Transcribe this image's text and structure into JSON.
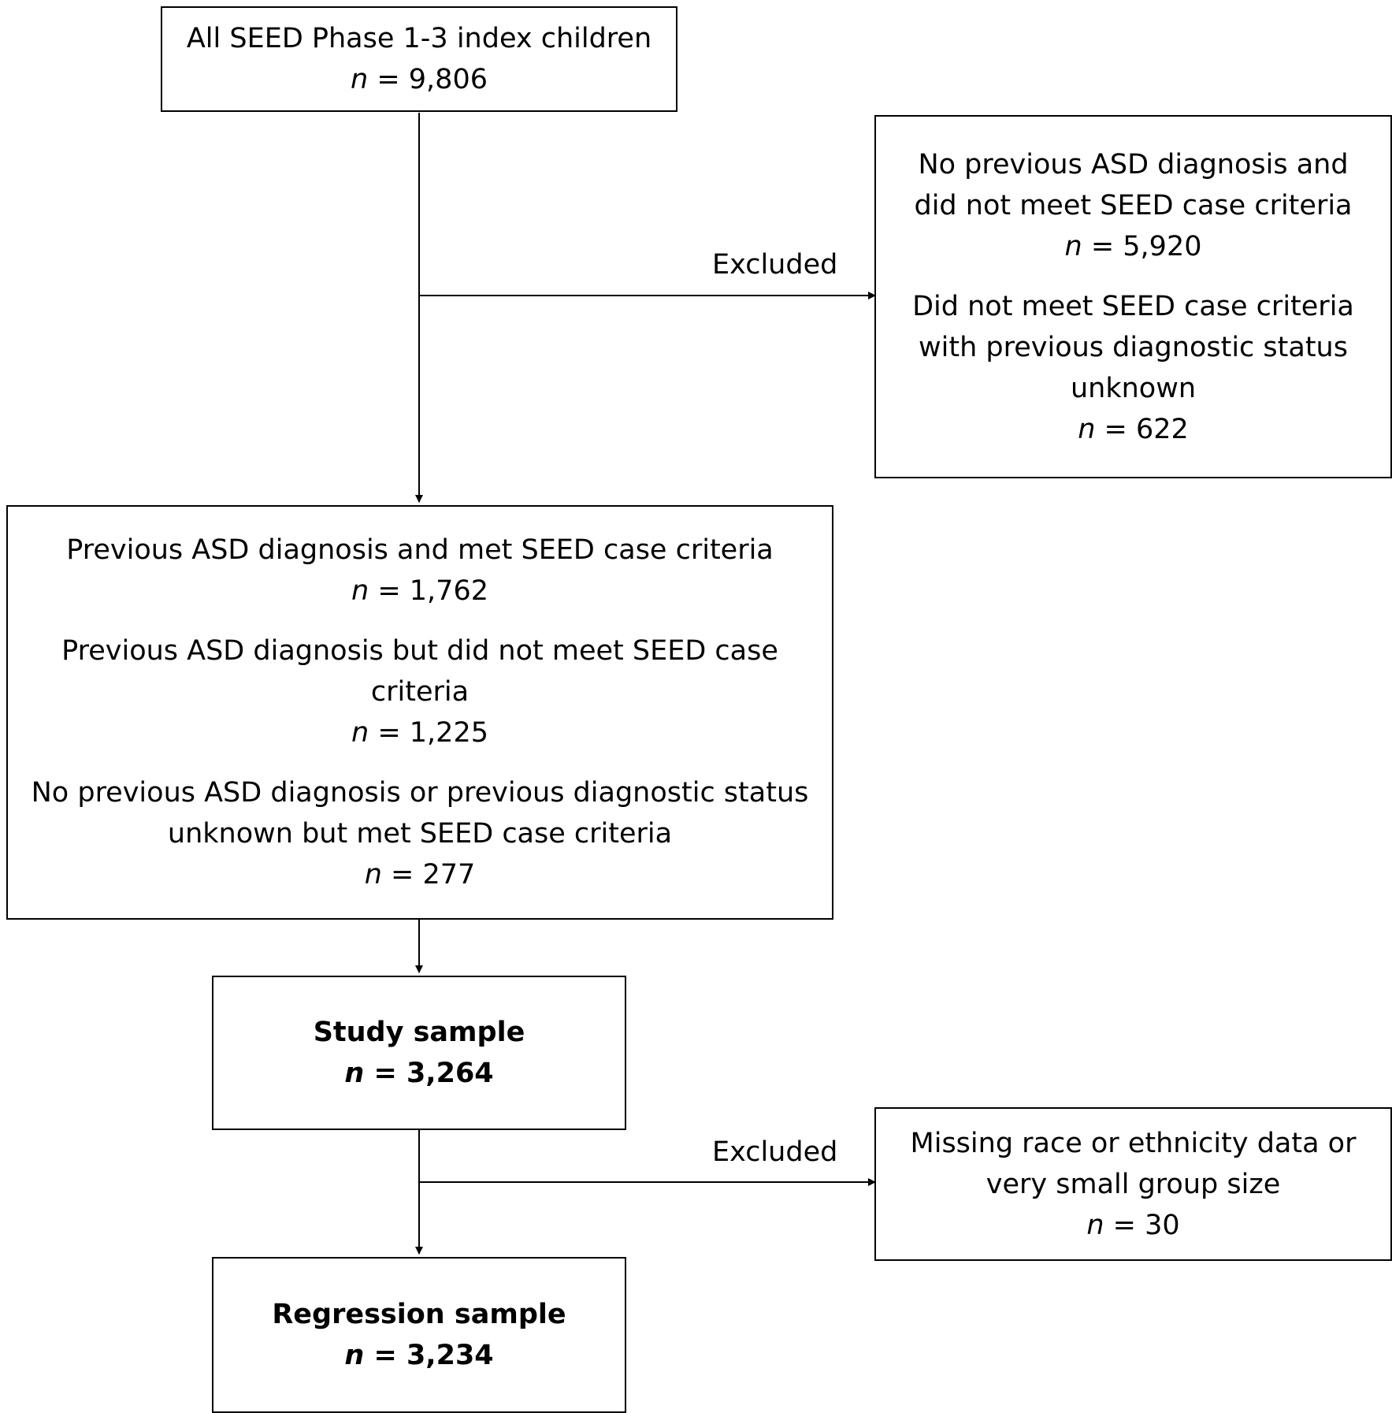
{
  "boxes": {
    "all_children": {
      "line1": "All SEED Phase 1-3 index children",
      "n_var": "n",
      "n_value": "= 9,806"
    },
    "excluded_1": {
      "group1": {
        "line1": "No previous ASD diagnosis and",
        "line2": "did not meet SEED case criteria",
        "n_var": "n",
        "n_value": "= 5,920"
      },
      "group2": {
        "line1": "Did not meet SEED case criteria",
        "line2": "with previous diagnostic status",
        "line3": "unknown",
        "n_var": "n",
        "n_value": "= 622"
      }
    },
    "case_groups": {
      "group1": {
        "line1": "Previous ASD diagnosis and met SEED case criteria",
        "n_var": "n",
        "n_value": "= 1,762"
      },
      "group2": {
        "line1": "Previous ASD diagnosis but did not meet SEED case",
        "line2": "criteria",
        "n_var": "n",
        "n_value": "= 1,225"
      },
      "group3": {
        "line1": "No previous ASD diagnosis or previous diagnostic status",
        "line2": "unknown but met SEED case criteria",
        "n_var": "n",
        "n_value": "= 277"
      }
    },
    "study_sample": {
      "label": "Study sample",
      "n_var": "n",
      "n_value": "= 3,264"
    },
    "excluded_2": {
      "line1": "Missing race or ethnicity data or",
      "line2": "very small group size",
      "n_var": "n",
      "n_value": "= 30"
    },
    "regression_sample": {
      "label": "Regression sample",
      "n_var": "n",
      "n_value": "= 3,234"
    }
  },
  "edge_labels": {
    "excluded_1": "Excluded",
    "excluded_2": "Excluded"
  }
}
